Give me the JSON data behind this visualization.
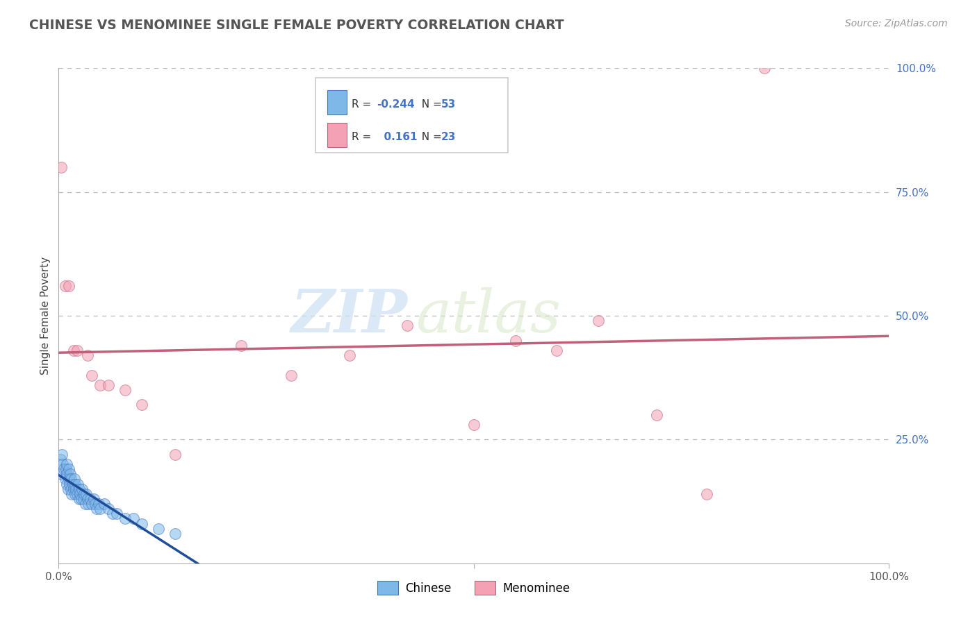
{
  "title": "CHINESE VS MENOMINEE SINGLE FEMALE POVERTY CORRELATION CHART",
  "source_text": "Source: ZipAtlas.com",
  "ylabel": "Single Female Poverty",
  "xlim": [
    0,
    1.0
  ],
  "ylim": [
    0,
    1.0
  ],
  "ytick_positions": [
    0.25,
    0.5,
    0.75,
    1.0
  ],
  "ytick_labels": [
    "25.0%",
    "50.0%",
    "75.0%",
    "100.0%"
  ],
  "watermark_zip": "ZIP",
  "watermark_atlas": "atlas",
  "background_color": "#ffffff",
  "grid_color": "#bbbbbb",
  "chinese_color": "#7db8e8",
  "chinese_edge_color": "#4472c4",
  "chinese_line_color": "#1f4e99",
  "menominee_color": "#f4a0b5",
  "menominee_edge_color": "#c0607a",
  "menominee_line_color": "#c0607a",
  "scatter_size": 130,
  "scatter_alpha": 0.55,
  "chinese_scatter_x": [
    0.002,
    0.003,
    0.004,
    0.005,
    0.006,
    0.008,
    0.009,
    0.01,
    0.01,
    0.01,
    0.011,
    0.012,
    0.012,
    0.013,
    0.014,
    0.015,
    0.015,
    0.016,
    0.017,
    0.018,
    0.019,
    0.02,
    0.02,
    0.021,
    0.022,
    0.023,
    0.025,
    0.025,
    0.026,
    0.027,
    0.028,
    0.03,
    0.031,
    0.032,
    0.033,
    0.035,
    0.036,
    0.038,
    0.04,
    0.042,
    0.044,
    0.046,
    0.048,
    0.05,
    0.055,
    0.06,
    0.065,
    0.07,
    0.08,
    0.09,
    0.1,
    0.12,
    0.14
  ],
  "chinese_scatter_y": [
    0.21,
    0.18,
    0.22,
    0.2,
    0.19,
    0.17,
    0.19,
    0.16,
    0.18,
    0.2,
    0.15,
    0.17,
    0.19,
    0.16,
    0.18,
    0.15,
    0.17,
    0.14,
    0.16,
    0.15,
    0.17,
    0.14,
    0.16,
    0.15,
    0.14,
    0.16,
    0.13,
    0.15,
    0.14,
    0.13,
    0.15,
    0.13,
    0.14,
    0.12,
    0.14,
    0.13,
    0.12,
    0.13,
    0.12,
    0.13,
    0.12,
    0.11,
    0.12,
    0.11,
    0.12,
    0.11,
    0.1,
    0.1,
    0.09,
    0.09,
    0.08,
    0.07,
    0.06
  ],
  "menominee_scatter_x": [
    0.003,
    0.008,
    0.012,
    0.018,
    0.022,
    0.035,
    0.04,
    0.05,
    0.06,
    0.08,
    0.1,
    0.14,
    0.22,
    0.28,
    0.35,
    0.42,
    0.5,
    0.55,
    0.6,
    0.65,
    0.72,
    0.78,
    0.85
  ],
  "menominee_scatter_y": [
    0.8,
    0.56,
    0.56,
    0.43,
    0.43,
    0.42,
    0.38,
    0.36,
    0.36,
    0.35,
    0.32,
    0.22,
    0.44,
    0.38,
    0.42,
    0.48,
    0.28,
    0.45,
    0.43,
    0.49,
    0.3,
    0.14,
    1.0
  ],
  "legend_r1_text": "R = -0.244",
  "legend_n1_text": "N = 53",
  "legend_r2_text": "R =   0.161",
  "legend_n2_text": "N = 23",
  "legend_color": "#4472c4"
}
